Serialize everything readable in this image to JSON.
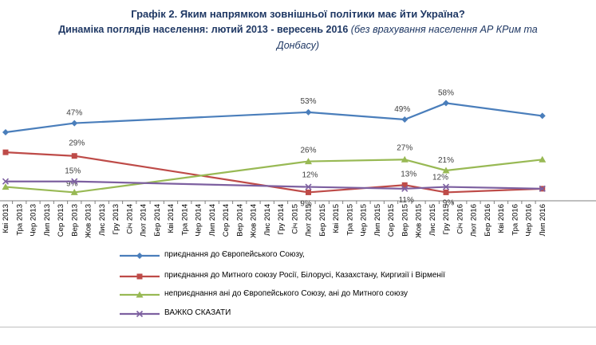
{
  "chart_data": {
    "type": "line",
    "title": "Графік 2. Яким напрямком зовнішньої політики має йти Україна?",
    "subtitle_main": "Динаміка поглядів населення: лютий 2013  - вересень 2016",
    "subtitle_note_1": "(без врахування населення АР КРим та",
    "subtitle_note_2": "Донбасу)",
    "categories": [
      "Кві 2013",
      "Тра 2013",
      "Чер 2013",
      "Лип 2013",
      "Сер 2013",
      "Вер 2013",
      "Жов 2013",
      "Лис 2013",
      "Гру 2013",
      "Січ 2014",
      "Лют 2014",
      "Бер 2014",
      "Кві 2014",
      "Тра 2014",
      "Чер 2014",
      "Лип 2014",
      "Сер 2014",
      "Вер 2014",
      "Жов 2014",
      "Лис 2014",
      "Гру 2014",
      "Січ 2015",
      "Лют 2015",
      "Бер 2015",
      "Кві 2015",
      "Тра 2015",
      "Чер 2015",
      "Лип 2015",
      "Сер 2015",
      "Вер 2015",
      "Жов 2015",
      "Лис 2015",
      "Гру 2015",
      "Січ 2016",
      "Лют 2016",
      "Бер 2016",
      "Кві 2016",
      "Тра 2016",
      "Чер 2016",
      "Лип 2016"
    ],
    "series": [
      {
        "name": "приєднання до Європейського Союзу,",
        "color": "#4a7ebb",
        "marker": "diamond",
        "points": [
          {
            "x": "Кві 2013",
            "y": 42
          },
          {
            "x": "Вер 2013",
            "y": 47,
            "label": "47%"
          },
          {
            "x": "Лют 2015",
            "y": 53,
            "label": "53%"
          },
          {
            "x": "Вер 2015",
            "y": 49,
            "label": "49%"
          },
          {
            "x": "Гру 2015",
            "y": 58,
            "label": "58%"
          },
          {
            "x": "Лип 2016",
            "y": 51
          }
        ]
      },
      {
        "name": "приєднання до Митного союзу Росії, Білорусі, Казахстану, Киргизії і Вірменії",
        "color": "#be4b48",
        "marker": "square",
        "points": [
          {
            "x": "Кві 2013",
            "y": 31
          },
          {
            "x": "Вер 2013",
            "y": 29,
            "label": "29%"
          },
          {
            "x": "Лют 2015",
            "y": 9,
            "label": "9%"
          },
          {
            "x": "Вер 2015",
            "y": 13,
            "label": "13%"
          },
          {
            "x": "Гру 2015",
            "y": 9,
            "label": "9%"
          },
          {
            "x": "Лип 2016",
            "y": 11
          }
        ]
      },
      {
        "name": "неприєднання ані до Європейського Союзу, ані до Митного союзу",
        "color": "#98b954",
        "marker": "triangle",
        "points": [
          {
            "x": "Кві 2013",
            "y": 12
          },
          {
            "x": "Вер 2013",
            "y": 9,
            "label": "9%"
          },
          {
            "x": "Лют 2015",
            "y": 26,
            "label": "26%"
          },
          {
            "x": "Вер 2015",
            "y": 27,
            "label": "27%"
          },
          {
            "x": "Гру 2015",
            "y": 21,
            "label": "21%"
          },
          {
            "x": "Лип 2016",
            "y": 27
          }
        ]
      },
      {
        "name": "ВАЖКО СКАЗАТИ",
        "color": "#7d60a0",
        "marker": "x",
        "points": [
          {
            "x": "Кві 2013",
            "y": 15
          },
          {
            "x": "Вер 2013",
            "y": 15,
            "label": "15%"
          },
          {
            "x": "Лют 2015",
            "y": 12,
            "label": "12%"
          },
          {
            "x": "Вер 2015",
            "y": 11,
            "label": "11%"
          },
          {
            "x": "Гру 2015",
            "y": 12,
            "label": "12%"
          },
          {
            "x": "Лип 2016",
            "y": 11
          }
        ]
      }
    ],
    "ylim": [
      0,
      70
    ],
    "grid": false,
    "legend_position": "bottom"
  }
}
